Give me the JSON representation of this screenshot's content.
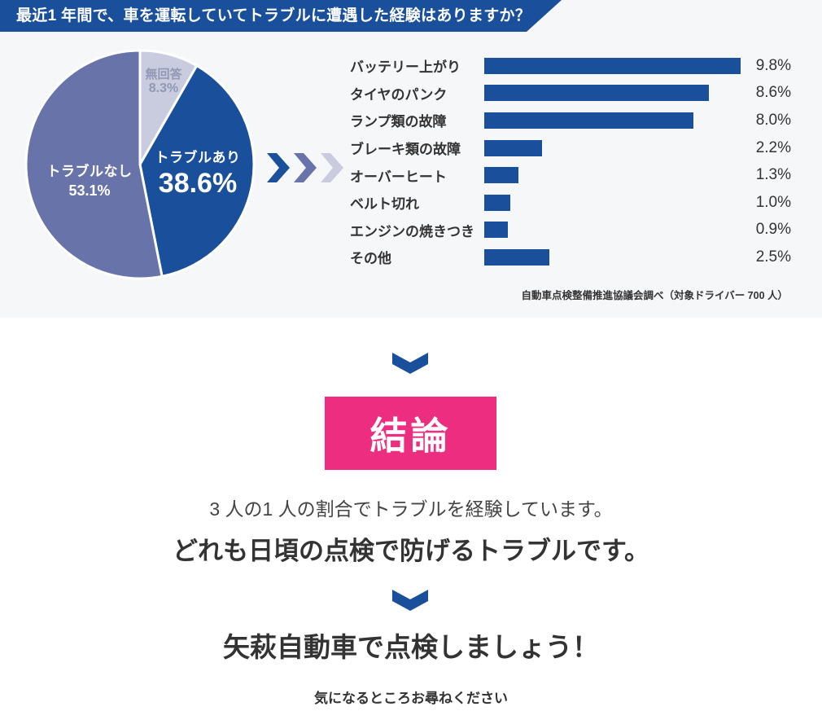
{
  "colors": {
    "primary_blue": "#1a4f9c",
    "slate_blue": "#6873aa",
    "lavender": "#c9cbdf",
    "pink": "#ed2d7f",
    "text_dark": "#333333",
    "muted_label": "#9298b3",
    "section_bg": "#f6f7f8",
    "white": "#ffffff"
  },
  "header": {
    "title": "最近1 年間で、車を運転していてトラブルに遭遇した経験はありますか？"
  },
  "chart_data": [
    {
      "type": "pie",
      "start_angle_deg": 0,
      "direction": "clockwise",
      "slices": [
        {
          "label": "無回答",
          "value": 8.3,
          "pct": "8.3%",
          "color": "#c9cbdf",
          "text_color": "#9298b3"
        },
        {
          "label": "トラブルあり",
          "value": 38.6,
          "pct": "38.6%",
          "color": "#1a4f9c",
          "text_color": "#ffffff"
        },
        {
          "label": "トラブルなし",
          "value": 53.1,
          "pct": "53.1%",
          "color": "#6873aa",
          "text_color": "#ffffff"
        }
      ]
    },
    {
      "type": "bar",
      "orientation": "horizontal",
      "categories": [
        "バッテリー上がり",
        "タイヤのパンク",
        "ランプ類の故障",
        "ブレーキ類の故障",
        "オーバーヒート",
        "ベルト切れ",
        "エンジンの焼きつき",
        "その他"
      ],
      "values": [
        9.8,
        8.6,
        8.0,
        2.2,
        1.3,
        1.0,
        0.9,
        2.5
      ],
      "value_labels": [
        "9.8%",
        "8.6%",
        "8.0%",
        "2.2%",
        "1.3%",
        "1.0%",
        "0.9%",
        "2.5%"
      ],
      "bar_color": "#1a4f9c",
      "xlim": [
        0,
        10
      ],
      "grid": false,
      "legend": false
    }
  ],
  "source_note": "自動車点検整備推進協議会調べ（対象ドライバー 700 人）",
  "conclusion": {
    "badge": "結論",
    "line1": "3 人の1 人の割合でトラブルを経験しています。",
    "line2": "どれも日頃の点検で防げるトラブルです。",
    "cta": "矢萩自動車で点検しましょう！",
    "sub": "気になるところお尋ねください"
  }
}
